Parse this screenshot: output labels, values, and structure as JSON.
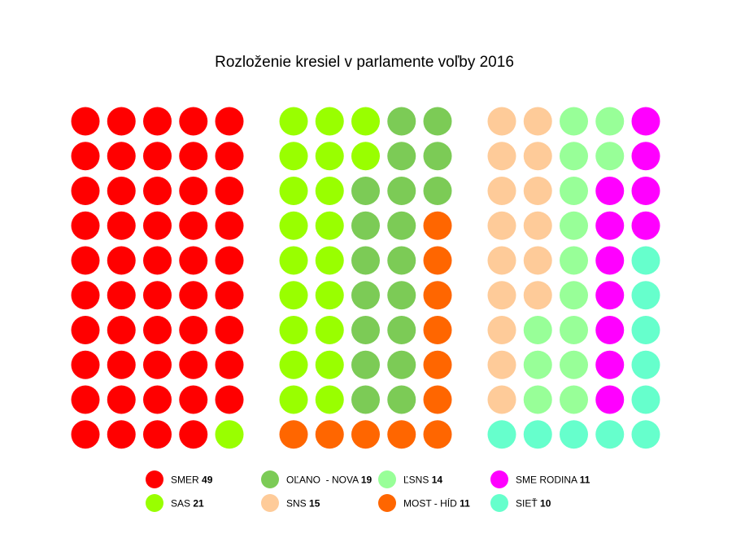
{
  "chart_data": {
    "type": "seat-dot-chart",
    "title": "Rozloženie kresiel v parlamente voľby 2016",
    "series": [
      {
        "name": "SMER",
        "value": 49,
        "color": "#ff0000"
      },
      {
        "name": "SAS",
        "value": 21,
        "color": "#99ff00"
      },
      {
        "name": "OĽANO  - NOVA",
        "value": 19,
        "color": "#7ccb56"
      },
      {
        "name": "MOST - HÍD",
        "value": 11,
        "color": "#ff6600"
      },
      {
        "name": "SNS",
        "value": 15,
        "color": "#fecb99"
      },
      {
        "name": "ĽSNS",
        "value": 14,
        "color": "#98ff98"
      },
      {
        "name": "SME RODINA",
        "value": 11,
        "color": "#ff00ff"
      },
      {
        "name": "SIEŤ",
        "value": 10,
        "color": "#66ffcc"
      }
    ],
    "total_seats": 150,
    "legend": [
      {
        "name": "SMER",
        "value": "49",
        "color": "#ff0000"
      },
      {
        "name": "OĽANO  - NOVA",
        "value": "19",
        "color": "#7ccb56"
      },
      {
        "name": "ĽSNS",
        "value": "14",
        "color": "#98ff98"
      },
      {
        "name": "SME RODINA",
        "value": "11",
        "color": "#ff00ff"
      },
      {
        "name": "SAS",
        "value": "21",
        "color": "#99ff00"
      },
      {
        "name": "SNS",
        "value": "15",
        "color": "#fecb99"
      },
      {
        "name": "MOST - HÍD",
        "value": "11",
        "color": "#ff6600"
      },
      {
        "name": "SIEŤ",
        "value": "10",
        "color": "#66ffcc"
      }
    ],
    "legend_placement": "bottom"
  }
}
